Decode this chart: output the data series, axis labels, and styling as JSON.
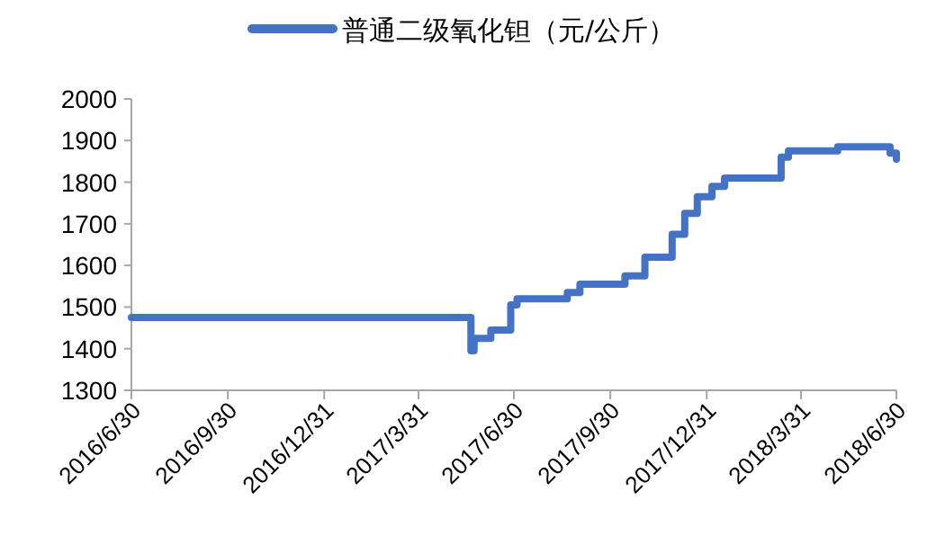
{
  "chart_data": {
    "type": "step",
    "legend": "top",
    "grid": false,
    "x": [
      "2016-06-30",
      "2017-05-20",
      "2017-05-23",
      "2017-06-08",
      "2017-06-27",
      "2017-07-03",
      "2017-08-20",
      "2017-09-01",
      "2017-10-14",
      "2017-11-02",
      "2017-11-28",
      "2017-12-10",
      "2017-12-22",
      "2018-01-05",
      "2018-01-17",
      "2018-03-12",
      "2018-03-19",
      "2018-05-05",
      "2018-06-24",
      "2018-06-30"
    ],
    "series": [
      {
        "name": "普通二级氧化钽（元/公斤）",
        "color": "#4472c4",
        "values": [
          1475,
          1395,
          1425,
          1445,
          1505,
          1520,
          1535,
          1555,
          1575,
          1620,
          1675,
          1725,
          1765,
          1790,
          1810,
          1860,
          1875,
          1885,
          1870,
          1855
        ]
      }
    ],
    "xlim": [
      "2016-06-30",
      "2018-06-30"
    ],
    "xticks": [
      {
        "value": "2016-06-30",
        "label": "2016/6/30"
      },
      {
        "value": "2016-09-30",
        "label": "2016/9/30"
      },
      {
        "value": "2016-12-31",
        "label": "2016/12/31"
      },
      {
        "value": "2017-03-31",
        "label": "2017/3/31"
      },
      {
        "value": "2017-06-30",
        "label": "2017/6/30"
      },
      {
        "value": "2017-09-30",
        "label": "2017/9/30"
      },
      {
        "value": "2017-12-31",
        "label": "2017/12/31"
      },
      {
        "value": "2018-03-31",
        "label": "2018/3/31"
      },
      {
        "value": "2018-06-30",
        "label": "2018/6/30"
      }
    ],
    "ylim": [
      1300,
      2000
    ],
    "yticks": [
      1300,
      1400,
      1500,
      1600,
      1700,
      1800,
      1900,
      2000
    ]
  }
}
